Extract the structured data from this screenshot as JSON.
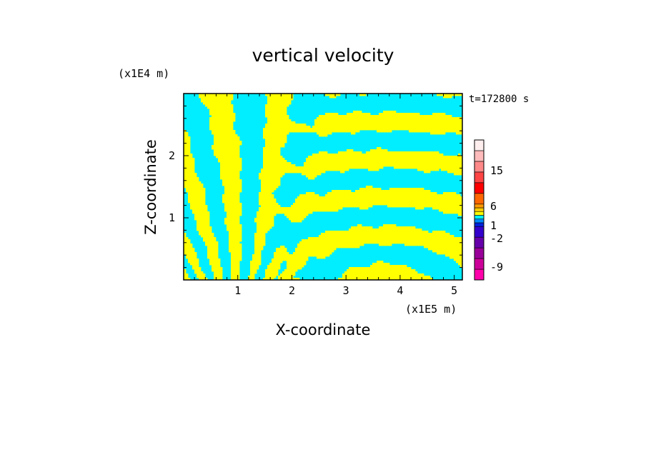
{
  "chart_data": {
    "type": "heatmap",
    "title": "vertical velocity",
    "xlabel": "X-coordinate",
    "ylabel": "Z-coordinate",
    "x_unit": "(x1E5 m)",
    "y_unit": "(x1E4 m)",
    "time_label": "t=172800 s",
    "xlim": [
      0,
      5.15
    ],
    "ylim": [
      0,
      3.0
    ],
    "x_ticks": [
      "1",
      "2",
      "3",
      "4",
      "5"
    ],
    "x_tick_values": [
      1,
      2,
      3,
      4,
      5
    ],
    "y_ticks": [
      "1",
      "2"
    ],
    "y_tick_values": [
      1,
      2
    ],
    "field_colors": {
      "negative": "#00eeff",
      "positive": "#ffff00"
    },
    "colorbar": {
      "labels": [
        "15",
        "6",
        "1",
        "-2",
        "-9"
      ],
      "label_values": [
        15,
        6,
        1,
        -2,
        -9
      ],
      "colors": [
        "#ff00aa",
        "#cc0099",
        "#990099",
        "#6600aa",
        "#3300cc",
        "#0022dd",
        "#0088ff",
        "#00eeff",
        "#ffff00",
        "#ffcc00",
        "#ff9900",
        "#ff6600",
        "#ff0000",
        "#ff4444",
        "#ff8888",
        "#ffbbbb",
        "#ffeeee"
      ]
    }
  }
}
